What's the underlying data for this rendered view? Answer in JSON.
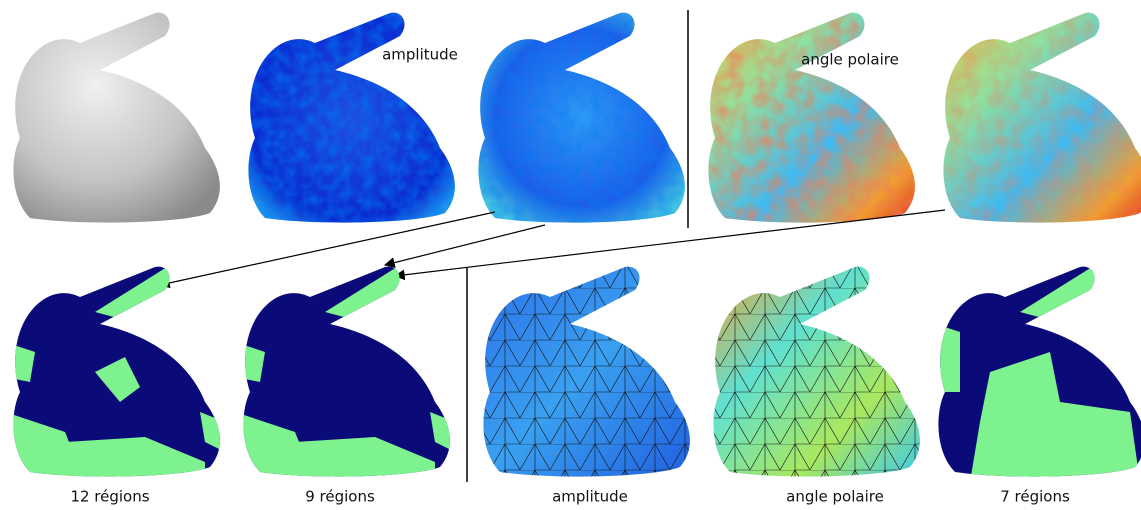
{
  "top_labels": [
    "amplitude",
    "angle polaire"
  ],
  "bottom_labels": [
    "12 régions",
    "9 régions",
    "amplitude",
    "angle polaire",
    "7 régions"
  ]
}
